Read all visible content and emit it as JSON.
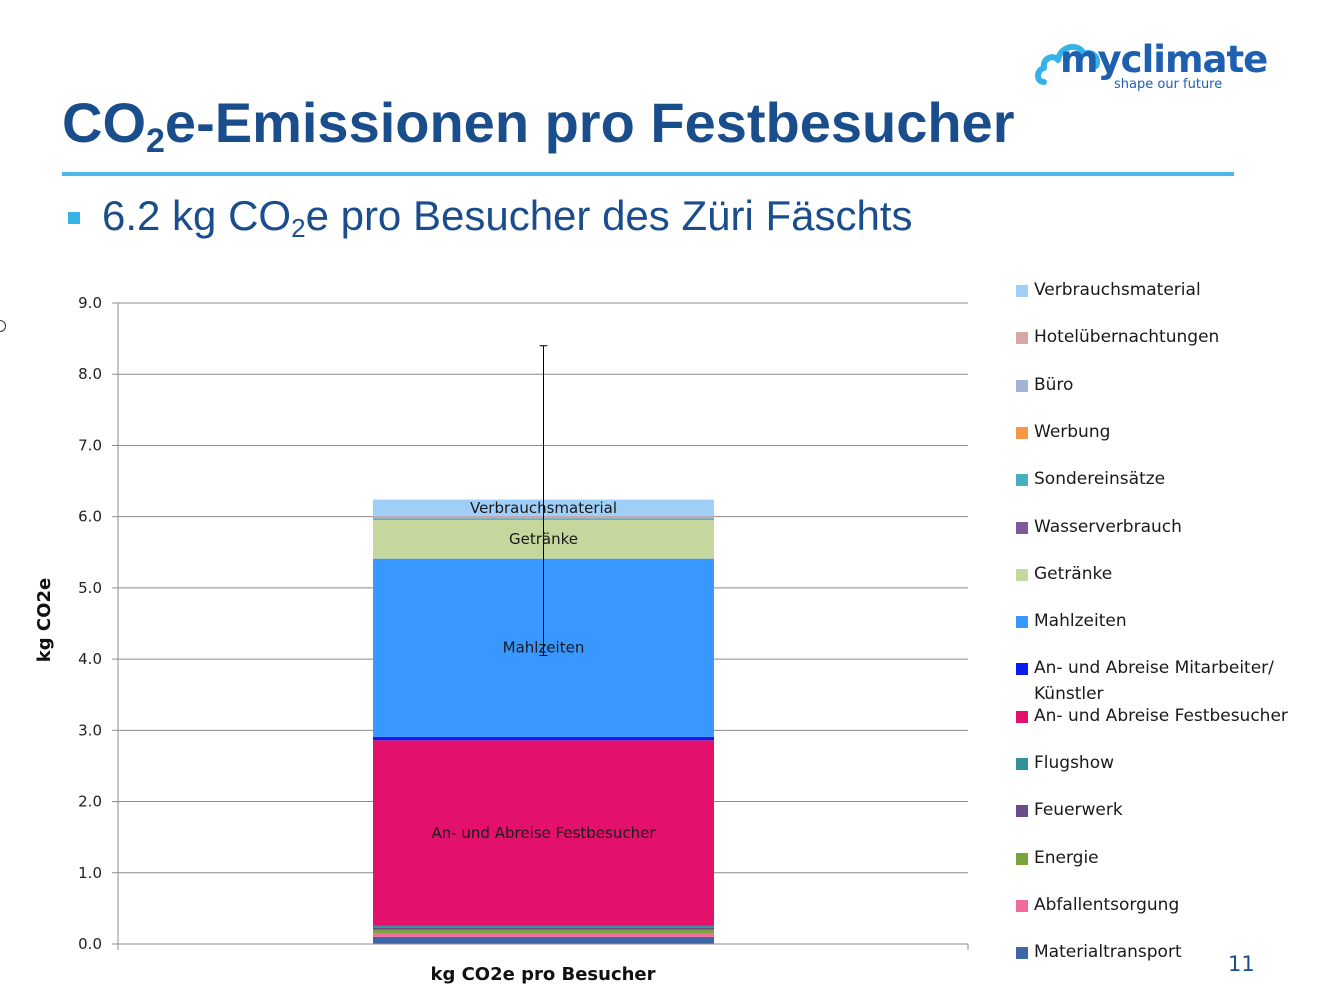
{
  "logo": {
    "name": "myclimate",
    "tagline": "shape our future",
    "color": "#1f5fb0",
    "cloud_color": "#36b3e6"
  },
  "slide": {
    "title_main": "CO",
    "title_sub": "2",
    "title_rest": "e-Emissionen pro Festbesucher",
    "bullet_pre": "6.2 kg CO",
    "bullet_sub": "2",
    "bullet_post": "e pro Besucher des Züri Fäschts",
    "page_number": "11"
  },
  "chart_data": {
    "type": "bar",
    "stacked": true,
    "categories": [
      "kg CO2e pro Besucher"
    ],
    "xlabel": "kg CO2e pro Besucher",
    "ylabel": "kg CO2e",
    "ylim": [
      0,
      9
    ],
    "yticks": [
      "0.0",
      "1.0",
      "2.0",
      "3.0",
      "4.0",
      "5.0",
      "6.0",
      "7.0",
      "8.0",
      "9.0"
    ],
    "grid": true,
    "legend_position": "right",
    "error_bar": {
      "low": 4.05,
      "high": 8.4
    },
    "series": [
      {
        "name": "Materialtransport",
        "values": [
          0.1
        ],
        "color": "#3f67a8"
      },
      {
        "name": "Abfallentsorgung",
        "values": [
          0.05
        ],
        "color": "#f06a9b"
      },
      {
        "name": "Energie",
        "values": [
          0.05
        ],
        "color": "#7aa33b"
      },
      {
        "name": "Feuerwerk",
        "values": [
          0.03
        ],
        "color": "#6a4c8a"
      },
      {
        "name": "Flugshow",
        "values": [
          0.03
        ],
        "color": "#33919a"
      },
      {
        "name": "An- und Abreise Festbesucher",
        "values": [
          2.6
        ],
        "color": "#e3106c",
        "label": "An- und Abreise Festbesucher"
      },
      {
        "name": "An- und Abreise Mitarbeiter/ Künstler",
        "values": [
          0.05
        ],
        "color": "#0a1cf0"
      },
      {
        "name": "Mahlzeiten",
        "values": [
          2.5
        ],
        "color": "#3898ff",
        "label": "Mahlzeiten"
      },
      {
        "name": "Getränke",
        "values": [
          0.55
        ],
        "color": "#c5d79c",
        "label": "Getränke"
      },
      {
        "name": "Wasserverbrauch",
        "values": [
          0.01
        ],
        "color": "#7d5a9e"
      },
      {
        "name": "Sondereinsätze",
        "values": [
          0.01
        ],
        "color": "#4bacc6"
      },
      {
        "name": "Werbung",
        "values": [
          0.01
        ],
        "color": "#f79646"
      },
      {
        "name": "Büro",
        "values": [
          0.01
        ],
        "color": "#a3b3d6"
      },
      {
        "name": "Hotelübernachtungen",
        "values": [
          0.01
        ],
        "color": "#d9a6a6"
      },
      {
        "name": "Verbrauchsmaterial",
        "values": [
          0.23
        ],
        "color": "#9fcff7",
        "label": "Verbrauchsmaterial"
      }
    ]
  }
}
